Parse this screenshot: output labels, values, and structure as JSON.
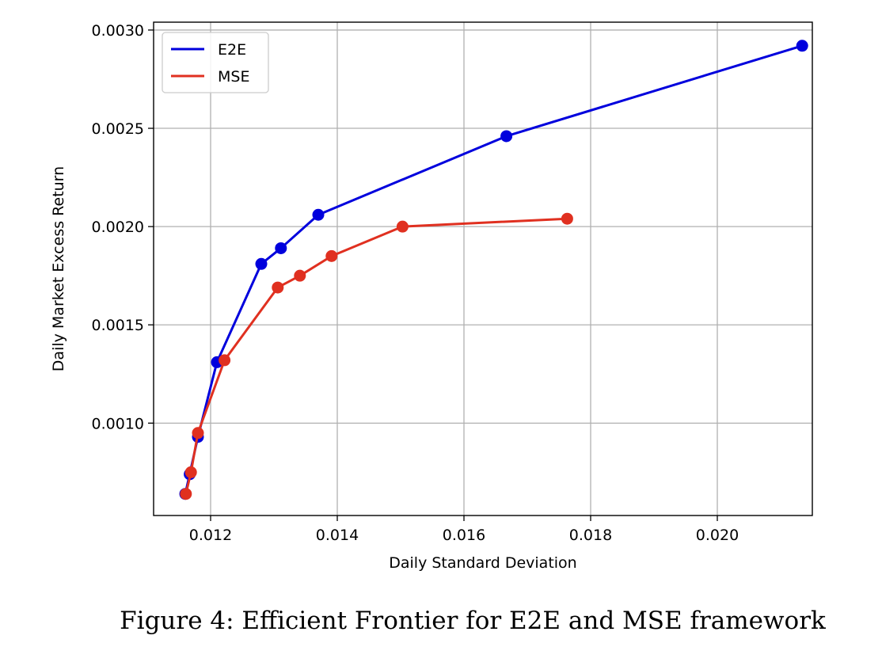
{
  "figure_caption": "Figure 4: Efficient Frontier for E2E and MSE framework",
  "chart_data": {
    "type": "line",
    "title": "",
    "xlabel": "Daily Standard Deviation",
    "ylabel": "Daily Market Excess Return",
    "xlim": [
      0.0111,
      0.0215
    ],
    "ylim": [
      0.00053,
      0.00304
    ],
    "xticks": [
      0.012,
      0.014,
      0.016,
      0.018,
      0.02
    ],
    "xtick_labels": [
      "0.012",
      "0.014",
      "0.016",
      "0.018",
      "0.020"
    ],
    "yticks": [
      0.001,
      0.0015,
      0.002,
      0.0025,
      0.003
    ],
    "ytick_labels": [
      "0.0010",
      "0.0015",
      "0.0020",
      "0.0025",
      "0.0030"
    ],
    "grid": true,
    "legend_position": "top-left",
    "series": [
      {
        "name": "E2E",
        "color": "#0000dd",
        "x": [
          0.0116,
          0.01167,
          0.0118,
          0.0121,
          0.0128,
          0.01311,
          0.0137,
          0.01667,
          0.02134
        ],
        "y": [
          0.00064,
          0.00074,
          0.00093,
          0.00131,
          0.00181,
          0.00189,
          0.00206,
          0.00246,
          0.00292
        ]
      },
      {
        "name": "MSE",
        "color": "#e03020",
        "x": [
          0.01161,
          0.01169,
          0.0118,
          0.01222,
          0.01306,
          0.01341,
          0.01391,
          0.01503,
          0.01763
        ],
        "y": [
          0.00064,
          0.00075,
          0.00095,
          0.00132,
          0.00169,
          0.00175,
          0.00185,
          0.002,
          0.00204
        ]
      }
    ]
  }
}
